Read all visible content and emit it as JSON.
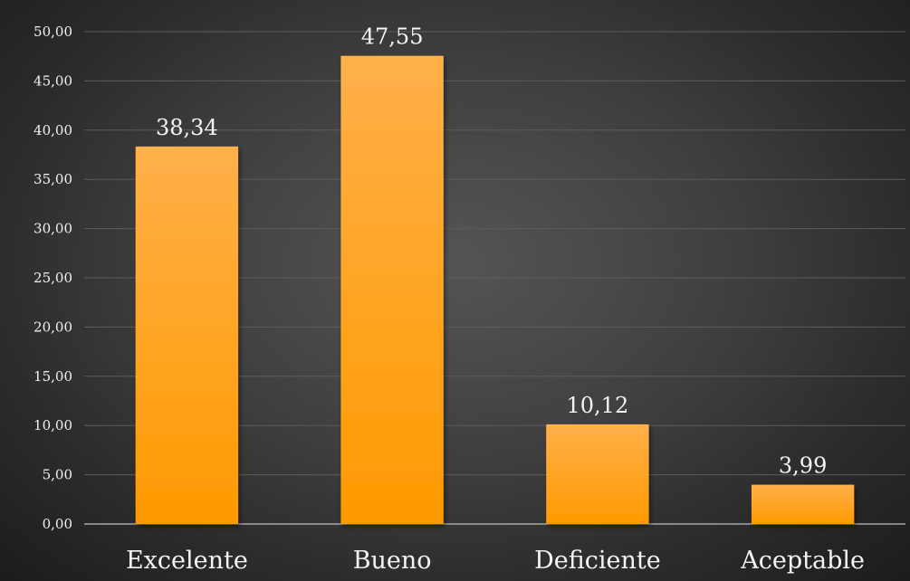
{
  "chart_data": {
    "type": "bar",
    "title": "",
    "xlabel": "",
    "ylabel": "",
    "categories": [
      "Excelente",
      "Bueno",
      "Deficiente",
      "Aceptable"
    ],
    "values": [
      38.34,
      47.55,
      10.12,
      3.99
    ],
    "value_labels": [
      "38,34",
      "47,55",
      "10,12",
      "3,99"
    ],
    "ylim": [
      0,
      50
    ],
    "y_ticks": [
      0,
      5,
      10,
      15,
      20,
      25,
      30,
      35,
      40,
      45,
      50
    ],
    "y_tick_labels": [
      "0,00",
      "5,00",
      "10,00",
      "15,00",
      "20,00",
      "25,00",
      "30,00",
      "35,00",
      "40,00",
      "45,00",
      "50,00"
    ],
    "grid": true,
    "legend": "none",
    "colors": {
      "bar_top": "#ffb04a",
      "bar_bottom": "#ff9a00",
      "background": "#3e3e3e",
      "text": "#f2f2f2"
    }
  }
}
